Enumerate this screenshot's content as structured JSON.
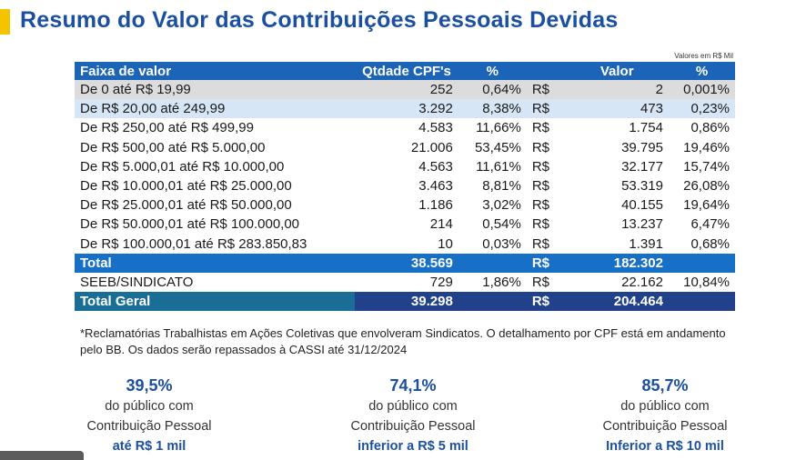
{
  "title": "Resumo do Valor das Contribuições Pessoais Devidas",
  "unit_note": "Valores em R$ Mil",
  "table": {
    "headers": [
      "Faixa de valor",
      "Qtdade CPF's",
      "%",
      "Valor",
      "%"
    ],
    "rows": [
      {
        "range": "De 0 até R$ 19,99",
        "qty": "252",
        "pct": "0,64%",
        "cur": "R$",
        "value": "2",
        "vpct": "0,001%"
      },
      {
        "range": "De R$ 20,00 até 249,99",
        "qty": "3.292",
        "pct": "8,38%",
        "cur": "R$",
        "value": "473",
        "vpct": "0,23%"
      },
      {
        "range": "De R$ 250,00 até R$ 499,99",
        "qty": "4.583",
        "pct": "11,66%",
        "cur": "R$",
        "value": "1.754",
        "vpct": "0,86%"
      },
      {
        "range": "De R$ 500,00 até R$ 5.000,00",
        "qty": "21.006",
        "pct": "53,45%",
        "cur": "R$",
        "value": "39.795",
        "vpct": "19,46%"
      },
      {
        "range": "De R$ 5.000,01 até R$ 10.000,00",
        "qty": "4.563",
        "pct": "11,61%",
        "cur": "R$",
        "value": "32.177",
        "vpct": "15,74%"
      },
      {
        "range": "De R$ 10.000,01 até R$ 25.000,00",
        "qty": "3.463",
        "pct": "8,81%",
        "cur": "R$",
        "value": "53.319",
        "vpct": "26,08%"
      },
      {
        "range": "De R$ 25.000,01 até R$ 50.000,00",
        "qty": "1.186",
        "pct": "3,02%",
        "cur": "R$",
        "value": "40.155",
        "vpct": "19,64%"
      },
      {
        "range": "De R$ 50.000,01 até R$ 100.000,00",
        "qty": "214",
        "pct": "0,54%",
        "cur": "R$",
        "value": "13.237",
        "vpct": "6,47%"
      },
      {
        "range": "De R$ 100.000,01 até R$ 283.850,83",
        "qty": "10",
        "pct": "0,03%",
        "cur": "R$",
        "value": "1.391",
        "vpct": "0,68%"
      }
    ],
    "total": {
      "label": "Total",
      "qty": "38.569",
      "cur": "R$",
      "value": "182.302"
    },
    "seeb": {
      "label": "SEEB/SINDICATO",
      "qty": "729",
      "pct": "1,86%",
      "cur": "R$",
      "value": "22.162",
      "vpct": "10,84%"
    },
    "grand_total": {
      "label": "Total Geral",
      "qty": "39.298",
      "cur": "R$",
      "value": "204.464"
    }
  },
  "footnote": "*Reclamatórias Trabalhistas em Ações Coletivas que envolveram Sindicatos. O detalhamento por CPF está em andamento pelo BB. Os dados serão repassados à CASSI até 31/12/2024",
  "stats": [
    {
      "pct": "39,5%",
      "line1": "do público com",
      "line2": "Contribuição Pessoal",
      "line3": "até R$ 1 mil"
    },
    {
      "pct": "74,1%",
      "line1": "do público com",
      "line2": "Contribuição Pessoal",
      "line3": "inferior a R$ 5 mil"
    },
    {
      "pct": "85,7%",
      "line1": "do público com",
      "line2": "Contribuição Pessoal",
      "line3": "Inferior a R$ 10 mil"
    }
  ],
  "colors": {
    "accent": "#f5c400",
    "brand_blue": "#1b4fa0",
    "header_blue": "#1b64b7",
    "total_blue": "#1770c6",
    "grand_navy": "#21428a"
  }
}
